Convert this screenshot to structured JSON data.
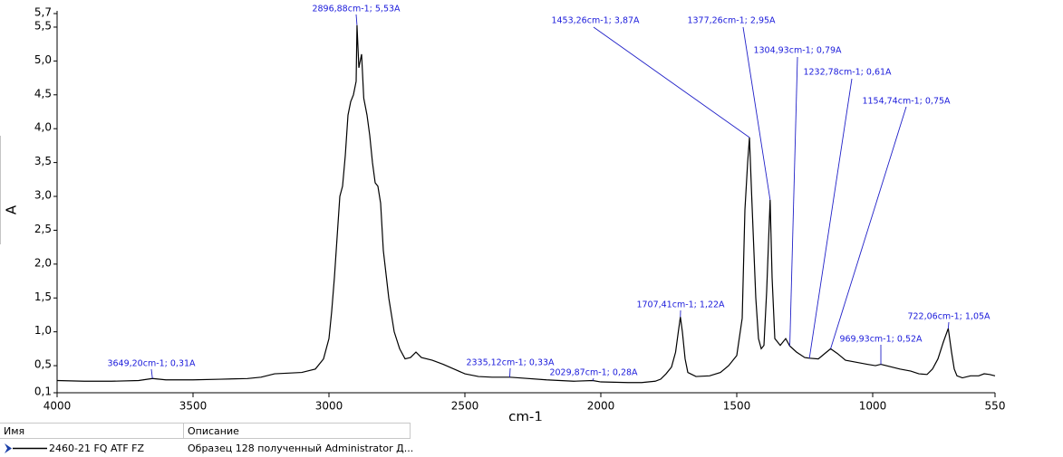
{
  "chart_data": {
    "type": "line",
    "x_label": "cm-1",
    "y_label": "A",
    "xlim": [
      4000,
      550
    ],
    "ylim": [
      0.1,
      5.7
    ],
    "xticks": [
      4000,
      3500,
      3000,
      2500,
      2000,
      1500,
      1000,
      550
    ],
    "yticks": [
      {
        "value": 0.1,
        "label": "0,1"
      },
      {
        "value": 0.5,
        "label": "0,5"
      },
      {
        "value": 1.0,
        "label": "1,0"
      },
      {
        "value": 1.5,
        "label": "1,5"
      },
      {
        "value": 2.0,
        "label": "2,0"
      },
      {
        "value": 2.5,
        "label": "2,5"
      },
      {
        "value": 3.0,
        "label": "3,0"
      },
      {
        "value": 3.5,
        "label": "3,5"
      },
      {
        "value": 4.0,
        "label": "4,0"
      },
      {
        "value": 4.5,
        "label": "4,5"
      },
      {
        "value": 5.0,
        "label": "5,0"
      },
      {
        "value": 5.5,
        "label": "5,5"
      },
      {
        "value": 5.7,
        "label": "5,7"
      }
    ],
    "x": [
      4000,
      3900,
      3800,
      3700,
      3649.2,
      3600,
      3500,
      3400,
      3300,
      3250,
      3200,
      3100,
      3050,
      3020,
      3000,
      2990,
      2980,
      2970,
      2960,
      2950,
      2940,
      2930,
      2920,
      2910,
      2900,
      2896.88,
      2890,
      2880,
      2872,
      2860,
      2850,
      2840,
      2830,
      2820,
      2810,
      2800,
      2780,
      2760,
      2740,
      2720,
      2700,
      2680,
      2660,
      2620,
      2580,
      2540,
      2500,
      2450,
      2400,
      2335.12,
      2300,
      2200,
      2100,
      2029.87,
      2000,
      1900,
      1850,
      1800,
      1780,
      1760,
      1740,
      1725,
      1715,
      1707.41,
      1700,
      1690,
      1680,
      1650,
      1600,
      1560,
      1530,
      1500,
      1480,
      1470,
      1460,
      1453.26,
      1445,
      1430,
      1420,
      1410,
      1400,
      1390,
      1377.26,
      1370,
      1360,
      1340,
      1320,
      1304.93,
      1280,
      1250,
      1232.78,
      1200,
      1170,
      1154.74,
      1130,
      1100,
      1060,
      1020,
      990,
      969.93,
      950,
      900,
      860,
      830,
      800,
      780,
      760,
      740,
      722.06,
      710,
      700,
      690,
      670,
      640,
      610,
      590,
      570,
      550
    ],
    "series": [
      {
        "name": "2460-21 FQ ATF FZ",
        "color": "#000000",
        "values": [
          0.28,
          0.27,
          0.27,
          0.28,
          0.31,
          0.29,
          0.29,
          0.3,
          0.31,
          0.33,
          0.38,
          0.4,
          0.45,
          0.6,
          0.9,
          1.3,
          1.8,
          2.4,
          3.0,
          3.15,
          3.6,
          4.2,
          4.4,
          4.5,
          4.7,
          5.53,
          4.9,
          5.1,
          4.45,
          4.2,
          3.9,
          3.5,
          3.2,
          3.15,
          2.9,
          2.2,
          1.5,
          1.0,
          0.75,
          0.6,
          0.62,
          0.7,
          0.62,
          0.58,
          0.52,
          0.45,
          0.38,
          0.34,
          0.33,
          0.33,
          0.32,
          0.29,
          0.27,
          0.28,
          0.26,
          0.25,
          0.25,
          0.27,
          0.3,
          0.38,
          0.48,
          0.7,
          1.0,
          1.22,
          1.0,
          0.6,
          0.4,
          0.34,
          0.35,
          0.4,
          0.5,
          0.65,
          1.2,
          2.8,
          3.5,
          3.87,
          3.0,
          1.5,
          0.9,
          0.75,
          0.8,
          1.6,
          2.95,
          1.8,
          0.9,
          0.8,
          0.9,
          0.79,
          0.7,
          0.62,
          0.61,
          0.6,
          0.7,
          0.75,
          0.68,
          0.58,
          0.55,
          0.52,
          0.5,
          0.52,
          0.5,
          0.45,
          0.42,
          0.38,
          0.37,
          0.45,
          0.6,
          0.85,
          1.05,
          0.7,
          0.45,
          0.35,
          0.32,
          0.35,
          0.35,
          0.38,
          0.37,
          0.35
        ]
      }
    ],
    "annotations": [
      {
        "text": "3649,20cm-1; 0,31A",
        "x": 3649.2,
        "y": 0.31
      },
      {
        "text": "2335,12cm-1; 0,33A",
        "x": 2335.12,
        "y": 0.33
      },
      {
        "text": "2029,87cm-1; 0,28A",
        "x": 2029.87,
        "y": 0.28
      },
      {
        "text": "1707,41cm-1; 1,22A",
        "x": 1707.41,
        "y": 1.22
      },
      {
        "text": "969,93cm-1; 0,52A",
        "x": 969.93,
        "y": 0.52
      },
      {
        "text": "722,06cm-1; 1,05A",
        "x": 722.06,
        "y": 1.05
      },
      {
        "text": "2896,88cm-1; 5,53A",
        "x": 2896.88,
        "y": 5.53
      },
      {
        "text": "1453,26cm-1; 3,87A",
        "x": 1453.26,
        "y": 3.87
      },
      {
        "text": "1377,26cm-1; 2,95A",
        "x": 1377.26,
        "y": 2.95
      },
      {
        "text": "1304,93cm-1; 0,79A",
        "x": 1304.93,
        "y": 0.79
      },
      {
        "text": "1232,78cm-1; 0,61A",
        "x": 1232.78,
        "y": 0.61
      },
      {
        "text": "1154,74cm-1; 0,75A",
        "x": 1154.74,
        "y": 0.75
      }
    ]
  },
  "table": {
    "headers": [
      "Имя",
      "Описание"
    ],
    "rows": [
      [
        "2460-21 FQ ATF FZ",
        "Образец 128 полученный Administrator Д..."
      ]
    ]
  }
}
